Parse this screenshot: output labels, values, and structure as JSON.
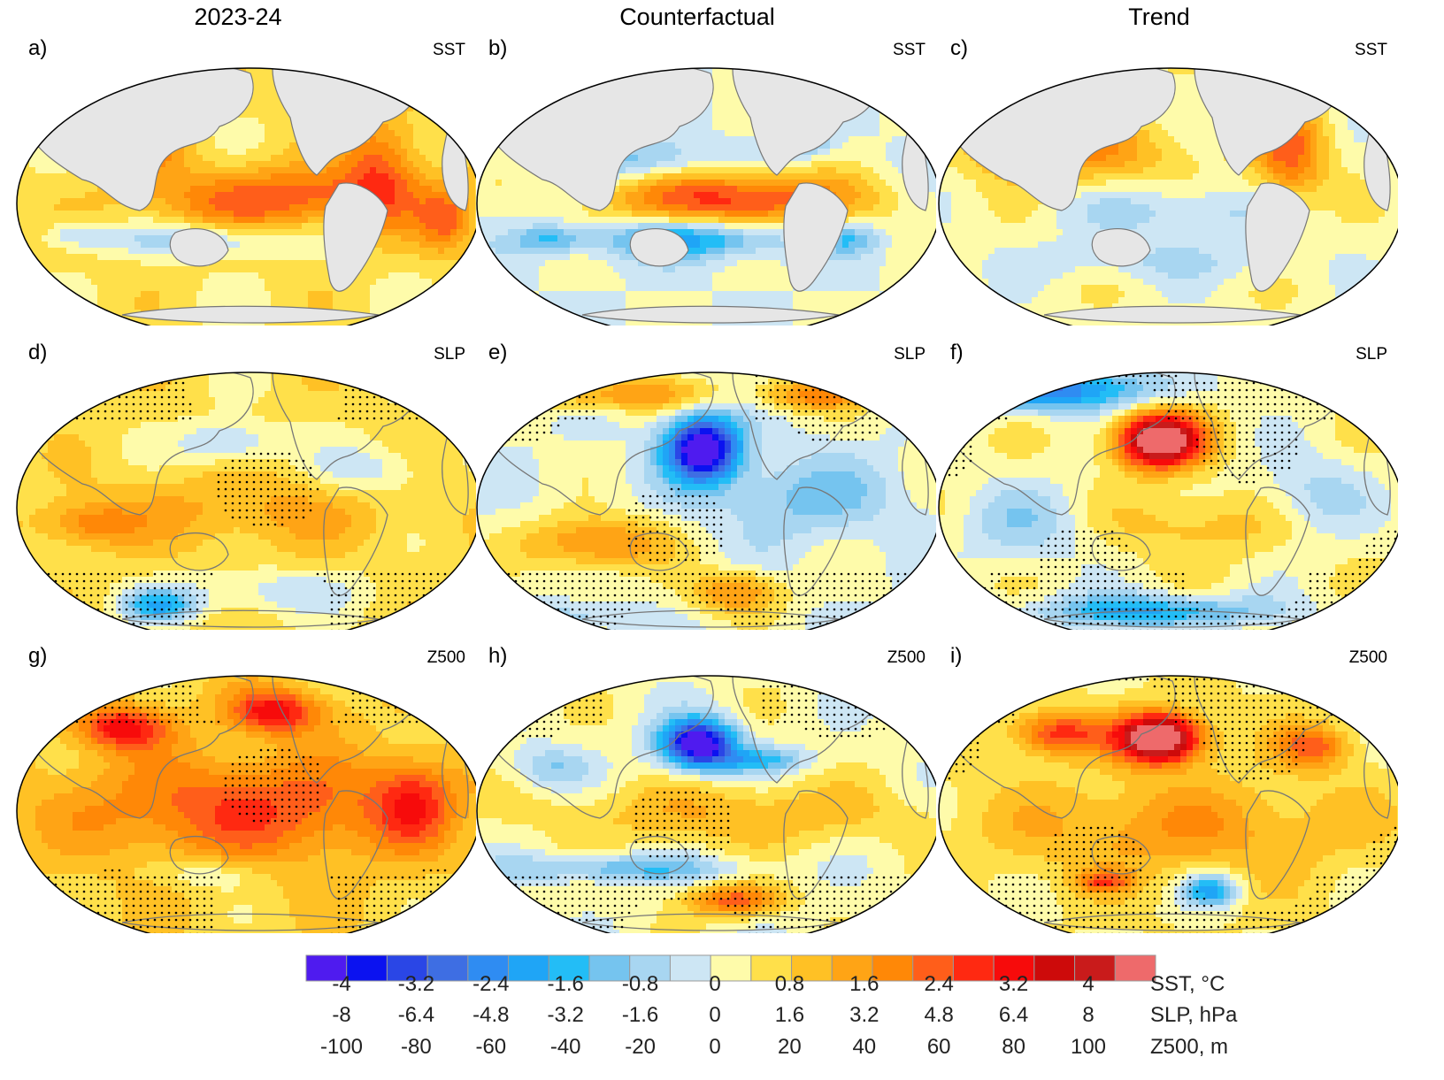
{
  "columns": [
    "2023-24",
    "Counterfactual",
    "Trend"
  ],
  "chart_data": {
    "type": "heatmap",
    "projection": "robinson",
    "grid": "9 map panels, 3 rows x 3 columns",
    "stippling": "dots over regions in SLP and Z500 panels",
    "panels": [
      {
        "label": "a)",
        "var": "SST",
        "column": "2023-24"
      },
      {
        "label": "b)",
        "var": "SST",
        "column": "Counterfactual"
      },
      {
        "label": "c)",
        "var": "SST",
        "column": "Trend"
      },
      {
        "label": "d)",
        "var": "SLP",
        "column": "2023-24"
      },
      {
        "label": "e)",
        "var": "SLP",
        "column": "Counterfactual"
      },
      {
        "label": "f)",
        "var": "SLP",
        "column": "Trend"
      },
      {
        "label": "g)",
        "var": "Z500",
        "column": "2023-24"
      },
      {
        "label": "h)",
        "var": "Z500",
        "column": "Counterfactual"
      },
      {
        "label": "i)",
        "var": "Z500",
        "column": "Trend"
      }
    ],
    "colorbar": {
      "colors": [
        "#4f1bef",
        "#0b12f0",
        "#2a46e6",
        "#3e6ee3",
        "#2f8cf2",
        "#1fa5f6",
        "#23bdf6",
        "#75c4ef",
        "#a8d6f1",
        "#cde6f4",
        "#fefbaa",
        "#ffe04a",
        "#ffc125",
        "#ffa415",
        "#ff8807",
        "#ff5e1a",
        "#ff2911",
        "#f70b0b",
        "#cd0a0a",
        "#c91b1b",
        "#ee6a6b"
      ],
      "rows": [
        {
          "name": "SST, °C",
          "ticks": [
            "-4",
            "-3.2",
            "-2.4",
            "-1.6",
            "-0.8",
            "0",
            "0.8",
            "1.6",
            "2.4",
            "3.2",
            "4"
          ]
        },
        {
          "name": "SLP, hPa",
          "ticks": [
            "-8",
            "-6.4",
            "-4.8",
            "-3.2",
            "-1.6",
            "0",
            "1.6",
            "3.2",
            "4.8",
            "6.4",
            "8"
          ]
        },
        {
          "name": "Z500, m",
          "ticks": [
            "-100",
            "-80",
            "-60",
            "-40",
            "-20",
            "0",
            "20",
            "40",
            "60",
            "80",
            "100"
          ]
        }
      ]
    }
  }
}
